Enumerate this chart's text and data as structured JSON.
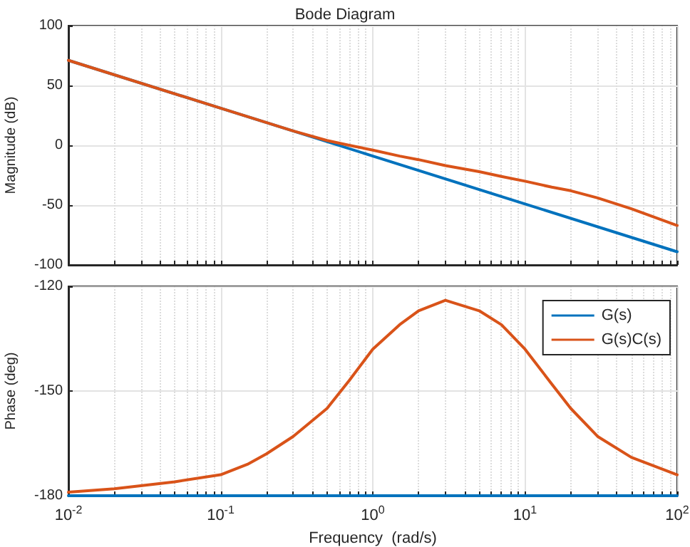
{
  "chart_data": [
    {
      "type": "line",
      "title": "Bode Diagram",
      "ylabel": "Magnitude (dB)",
      "log": "x",
      "grid": true,
      "tick_labels": "y",
      "marker": "none",
      "line_style": "solid",
      "legend": false,
      "xlim": [
        0.01,
        100
      ],
      "ylim": [
        -100,
        100
      ],
      "yticks": [
        -100,
        -50,
        0,
        50,
        100
      ],
      "xticks": [
        {
          "value": 0.01,
          "label": null
        },
        {
          "value": 0.02,
          "label": null
        },
        {
          "value": 0.03,
          "label": null
        },
        {
          "value": 0.04,
          "label": null
        },
        {
          "value": 0.05,
          "label": null
        },
        {
          "value": 0.06,
          "label": null
        },
        {
          "value": 0.07,
          "label": null
        },
        {
          "value": 0.08,
          "label": null
        },
        {
          "value": 0.09,
          "label": null
        },
        {
          "value": 0.1,
          "label": null
        },
        {
          "value": 0.2,
          "label": null
        },
        {
          "value": 0.3,
          "label": null
        },
        {
          "value": 0.4,
          "label": null
        },
        {
          "value": 0.5,
          "label": null
        },
        {
          "value": 0.6,
          "label": null
        },
        {
          "value": 0.7,
          "label": null
        },
        {
          "value": 0.8,
          "label": null
        },
        {
          "value": 0.9,
          "label": null
        },
        {
          "value": 1,
          "label": null
        },
        {
          "value": 2,
          "label": null
        },
        {
          "value": 3,
          "label": null
        },
        {
          "value": 4,
          "label": null
        },
        {
          "value": 5,
          "label": null
        },
        {
          "value": 6,
          "label": null
        },
        {
          "value": 7,
          "label": null
        },
        {
          "value": 8,
          "label": null
        },
        {
          "value": 9,
          "label": null
        },
        {
          "value": 10,
          "label": null
        },
        {
          "value": 20,
          "label": null
        },
        {
          "value": 30,
          "label": null
        },
        {
          "value": 40,
          "label": null
        },
        {
          "value": 50,
          "label": null
        },
        {
          "value": 60,
          "label": null
        },
        {
          "value": 70,
          "label": null
        },
        {
          "value": 80,
          "label": null
        },
        {
          "value": 90,
          "label": null
        },
        {
          "value": 100,
          "label": null
        }
      ],
      "series": [
        {
          "color": "#0072bd",
          "x": [
            0.01,
            0.1,
            1,
            10,
            100
          ],
          "values": [
            71,
            31,
            -9,
            -49,
            -89
          ]
        },
        {
          "color": "#d95319",
          "x": [
            0.01,
            0.1,
            0.3,
            0.5,
            0.7,
            1,
            1.5,
            2,
            3,
            5,
            7,
            10,
            15,
            20,
            30,
            50,
            100
          ],
          "values": [
            71,
            31,
            12,
            4,
            0,
            -4,
            -9,
            -12,
            -17,
            -22,
            -26,
            -30,
            -35,
            -38,
            -44,
            -53,
            -67
          ]
        }
      ]
    },
    {
      "type": "line",
      "xlabel": "Frequency  (rad/s)",
      "ylabel": "Phase (deg)",
      "log": "x",
      "grid": true,
      "marker": "none",
      "line_style": "solid",
      "legend": "top right",
      "xlim": [
        0.01,
        100
      ],
      "ylim": [
        -180,
        -120
      ],
      "yticks": [
        -180,
        -150,
        -120
      ],
      "xticks": [
        {
          "value": 0.01,
          "label": "10$^{-2}$"
        },
        {
          "value": 0.02,
          "label": null
        },
        {
          "value": 0.03,
          "label": null
        },
        {
          "value": 0.04,
          "label": null
        },
        {
          "value": 0.05,
          "label": null
        },
        {
          "value": 0.06,
          "label": null
        },
        {
          "value": 0.07,
          "label": null
        },
        {
          "value": 0.08,
          "label": null
        },
        {
          "value": 0.09,
          "label": null
        },
        {
          "value": 0.1,
          "label": "10$^{-1}$"
        },
        {
          "value": 0.2,
          "label": null
        },
        {
          "value": 0.3,
          "label": null
        },
        {
          "value": 0.4,
          "label": null
        },
        {
          "value": 0.5,
          "label": null
        },
        {
          "value": 0.6,
          "label": null
        },
        {
          "value": 0.7,
          "label": null
        },
        {
          "value": 0.8,
          "label": null
        },
        {
          "value": 0.9,
          "label": null
        },
        {
          "value": 1,
          "label": "10$^{0}$"
        },
        {
          "value": 2,
          "label": null
        },
        {
          "value": 3,
          "label": null
        },
        {
          "value": 4,
          "label": null
        },
        {
          "value": 5,
          "label": null
        },
        {
          "value": 6,
          "label": null
        },
        {
          "value": 7,
          "label": null
        },
        {
          "value": 8,
          "label": null
        },
        {
          "value": 9,
          "label": null
        },
        {
          "value": 10,
          "label": "10$^{1}$"
        },
        {
          "value": 20,
          "label": null
        },
        {
          "value": 30,
          "label": null
        },
        {
          "value": 40,
          "label": null
        },
        {
          "value": 50,
          "label": null
        },
        {
          "value": 60,
          "label": null
        },
        {
          "value": 70,
          "label": null
        },
        {
          "value": 80,
          "label": null
        },
        {
          "value": 90,
          "label": null
        },
        {
          "value": 100,
          "label": "10$^{2}$"
        }
      ],
      "series": [
        {
          "name": "G(s)",
          "color": "#0072bd",
          "x": [
            0.01,
            100
          ],
          "values": [
            -180,
            -180
          ]
        },
        {
          "name": "G(s)C(s)",
          "color": "#d95319",
          "x": [
            0.01,
            0.02,
            0.05,
            0.1,
            0.15,
            0.2,
            0.3,
            0.5,
            0.7,
            1,
            1.5,
            2,
            3,
            5,
            7,
            10,
            15,
            20,
            30,
            50,
            100
          ],
          "values": [
            -179,
            -178,
            -176,
            -174,
            -171,
            -168,
            -163,
            -155,
            -147,
            -138,
            -131,
            -127,
            -124,
            -127,
            -131,
            -138,
            -148,
            -155,
            -163,
            -169,
            -174
          ]
        }
      ]
    }
  ]
}
